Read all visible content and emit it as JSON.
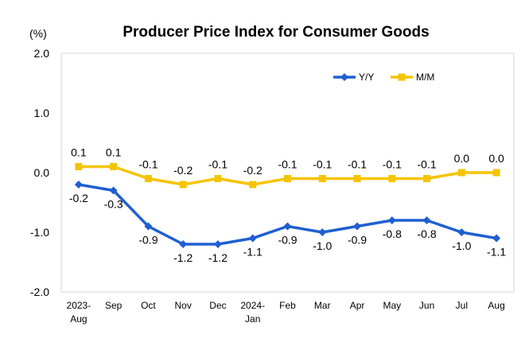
{
  "chart_data": {
    "type": "line",
    "title": "Producer Price Index for Consumer Goods",
    "unit": "(%)",
    "categories": [
      [
        "2023-",
        "Aug"
      ],
      [
        "Sep"
      ],
      [
        "Oct"
      ],
      [
        "Nov"
      ],
      [
        "Dec"
      ],
      [
        "2024-",
        "Jan"
      ],
      [
        "Feb"
      ],
      [
        "Mar"
      ],
      [
        "Apr"
      ],
      [
        "May"
      ],
      [
        "Jun"
      ],
      [
        "Jul"
      ],
      [
        "Aug"
      ]
    ],
    "series": [
      {
        "name": "Y/Y",
        "color": "#1f5fd1",
        "marker": "diamond",
        "values": [
          -0.2,
          -0.3,
          -0.9,
          -1.2,
          -1.2,
          -1.1,
          -0.9,
          -1.0,
          -0.9,
          -0.8,
          -0.8,
          -1.0,
          -1.1
        ],
        "labels": [
          "-0.2",
          "-0.3",
          "-0.9",
          "-1.2",
          "-1.2",
          "-1.1",
          "-0.9",
          "-1.0",
          "-0.9",
          "-0.8",
          "-0.8",
          "-1.0",
          "-1.1"
        ],
        "label_position": "below"
      },
      {
        "name": "M/M",
        "color": "#f5c400",
        "marker": "square",
        "values": [
          0.1,
          0.1,
          -0.1,
          -0.2,
          -0.1,
          -0.2,
          -0.1,
          -0.1,
          -0.1,
          -0.1,
          -0.1,
          0.0,
          0.0
        ],
        "labels": [
          "0.1",
          "0.1",
          "-0.1",
          "-0.2",
          "-0.1",
          "-0.2",
          "-0.1",
          "-0.1",
          "-0.1",
          "-0.1",
          "-0.1",
          "0.0",
          "0.0"
        ],
        "label_position": "above"
      }
    ],
    "ylim": [
      -2.0,
      2.0
    ],
    "yticks": [
      "2.0",
      "1.0",
      "0.0",
      "-1.0",
      "-2.0"
    ],
    "grid": false,
    "legend_placement": "top-right"
  }
}
